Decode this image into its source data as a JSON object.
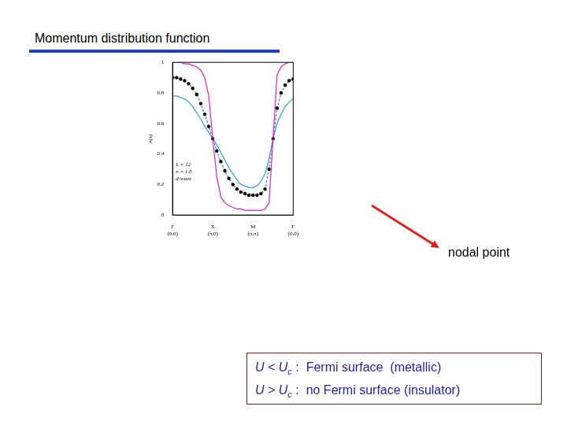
{
  "slide": {
    "title": "Momentum distribution function",
    "arrow_label": "nodal point",
    "notes": [
      {
        "left": "U < U",
        "subscript": "c",
        "right": " :  Fermi surface  (metallic)"
      },
      {
        "left": "U > U",
        "subscript": "c",
        "right": " :  no Fermi surface (insulator)"
      }
    ]
  },
  "chart_data": {
    "type": "line",
    "y_label": "n(k)",
    "annotations": [
      "L = 12",
      "n = 1.0",
      "d-wave"
    ],
    "x": [
      0,
      0.1,
      0.2,
      0.3,
      0.4,
      0.5,
      0.6,
      0.7,
      0.8,
      0.9,
      1.0,
      1.1,
      1.2,
      1.3,
      1.4,
      1.5,
      1.6,
      1.7,
      1.8,
      1.9,
      2.0,
      2.1,
      2.2,
      2.3,
      2.4,
      2.5,
      2.6,
      2.7,
      2.8,
      2.9,
      3.0
    ],
    "series": [
      {
        "color": "#e020c0",
        "line_style": "solid",
        "marker": "none",
        "values": [
          1,
          1,
          1,
          0.99,
          0.99,
          0.98,
          0.97,
          0.95,
          0.9,
          0.78,
          0.5,
          0.25,
          0.12,
          0.08,
          0.06,
          0.05,
          0.04,
          0.04,
          0.03,
          0.03,
          0.03,
          0.03,
          0.03,
          0.04,
          0.08,
          0.5,
          0.92,
          0.97,
          0.99,
          1,
          1
        ]
      },
      {
        "color": "#3a86c0",
        "line_style": "dashed",
        "marker": "circle",
        "values": [
          0.9,
          0.9,
          0.89,
          0.88,
          0.86,
          0.83,
          0.79,
          0.73,
          0.66,
          0.58,
          0.5,
          0.42,
          0.35,
          0.29,
          0.24,
          0.2,
          0.17,
          0.15,
          0.14,
          0.13,
          0.13,
          0.13,
          0.14,
          0.17,
          0.3,
          0.5,
          0.7,
          0.8,
          0.85,
          0.88,
          0.89
        ]
      },
      {
        "color": "#29a3c9",
        "line_style": "solid",
        "marker": "none",
        "values": [
          0.78,
          0.78,
          0.77,
          0.76,
          0.74,
          0.71,
          0.67,
          0.63,
          0.58,
          0.54,
          0.5,
          0.46,
          0.41,
          0.36,
          0.31,
          0.27,
          0.23,
          0.2,
          0.19,
          0.18,
          0.18,
          0.19,
          0.22,
          0.27,
          0.37,
          0.5,
          0.6,
          0.66,
          0.71,
          0.74,
          0.76
        ]
      }
    ],
    "xlim": [
      0,
      3
    ],
    "xticks": [
      {
        "value": 0,
        "label": "Γ (0,0)"
      },
      {
        "value": 1,
        "label": "X (π,0)"
      },
      {
        "value": 2,
        "label": "M (π,π)"
      },
      {
        "value": 3,
        "label": "Γ (0,0)"
      }
    ],
    "ylim": [
      0,
      1
    ],
    "yticks": [
      0,
      0.2,
      0.4,
      0.6,
      0.8,
      1
    ],
    "grid": false,
    "legend": "none"
  }
}
